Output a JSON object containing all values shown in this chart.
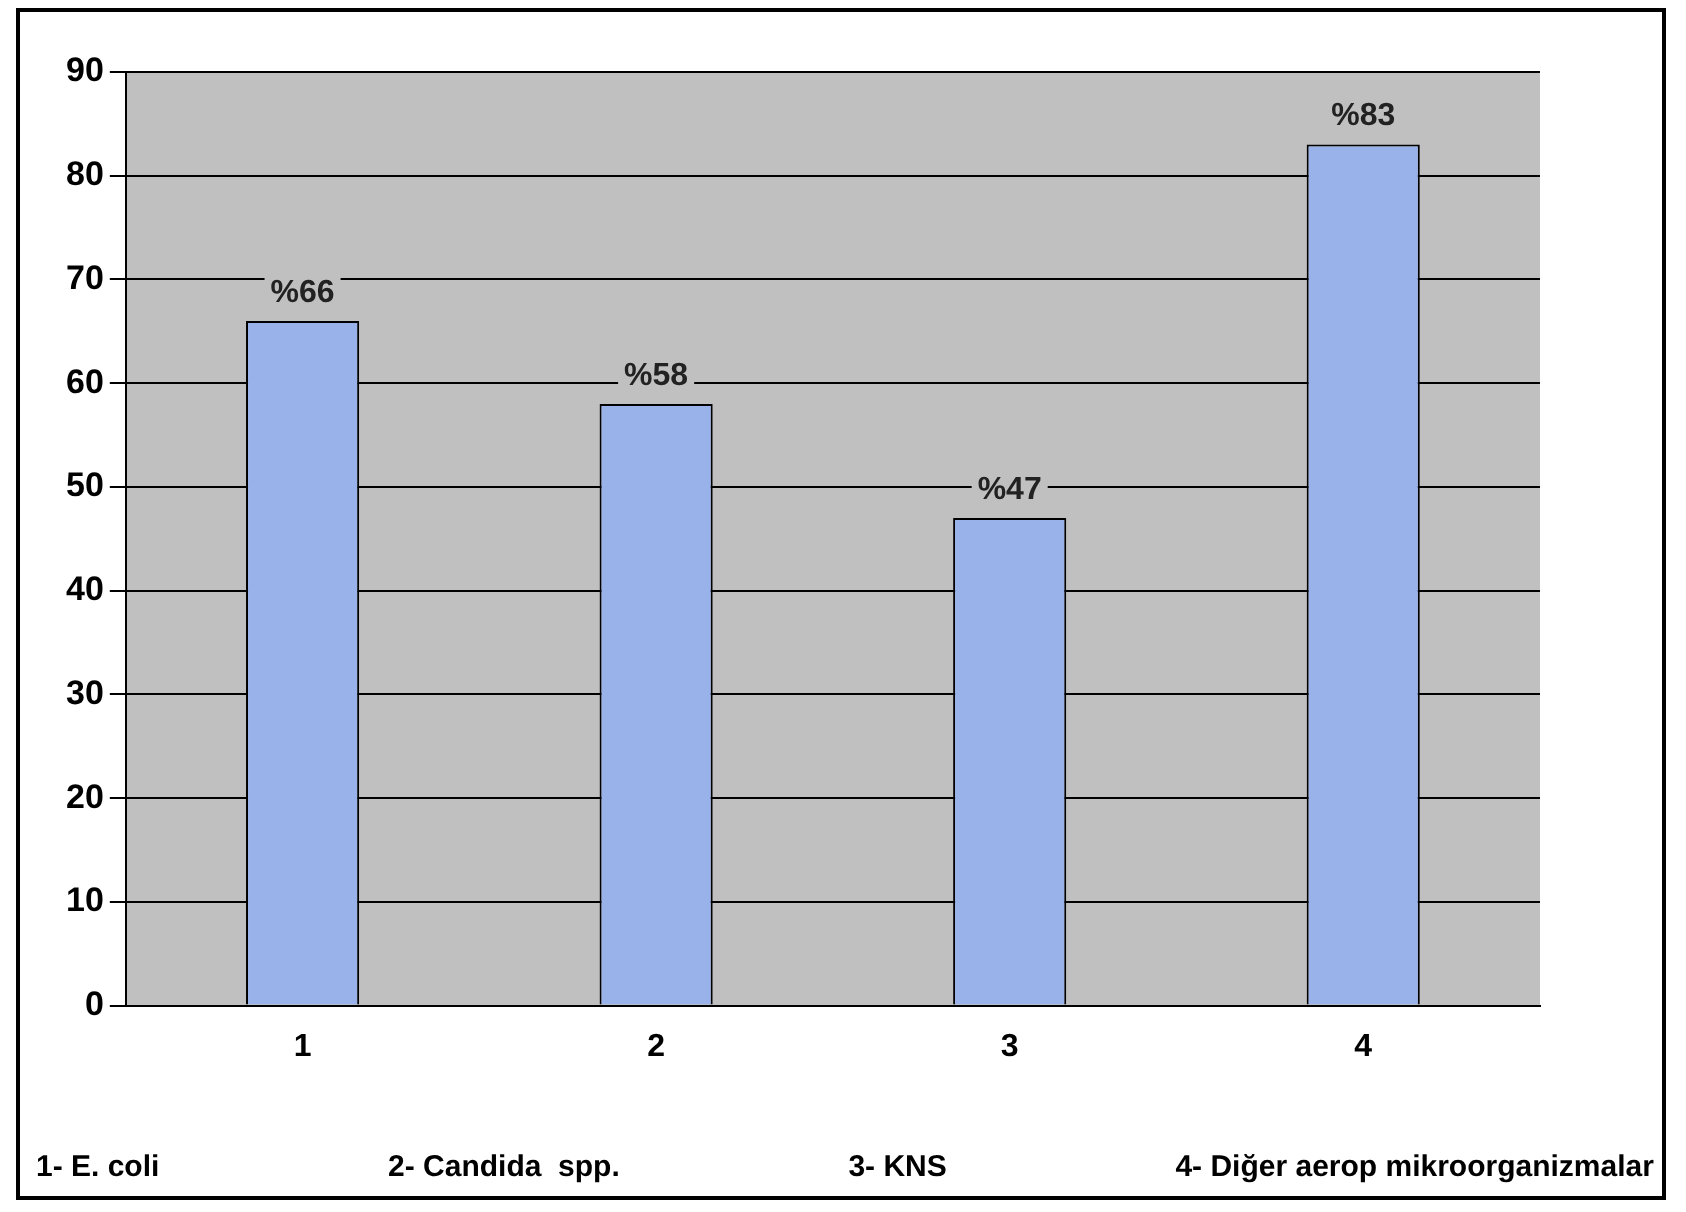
{
  "chart_data": {
    "type": "bar",
    "categories": [
      "1",
      "2",
      "3",
      "4"
    ],
    "values": [
      66,
      58,
      47,
      83
    ],
    "color": "#99b3ea",
    "value_labels": [
      "%66",
      "%58",
      "%47",
      "%83"
    ],
    "ylim": [
      0,
      90
    ],
    "yticks": [
      0,
      10,
      20,
      30,
      40,
      50,
      60,
      70,
      80,
      90
    ],
    "grid": "y",
    "annotations": [
      "1- E. coli",
      "2- Candida  spp.",
      "3- KNS",
      "4- Diğer aerop mikroorganizmalar"
    ]
  }
}
